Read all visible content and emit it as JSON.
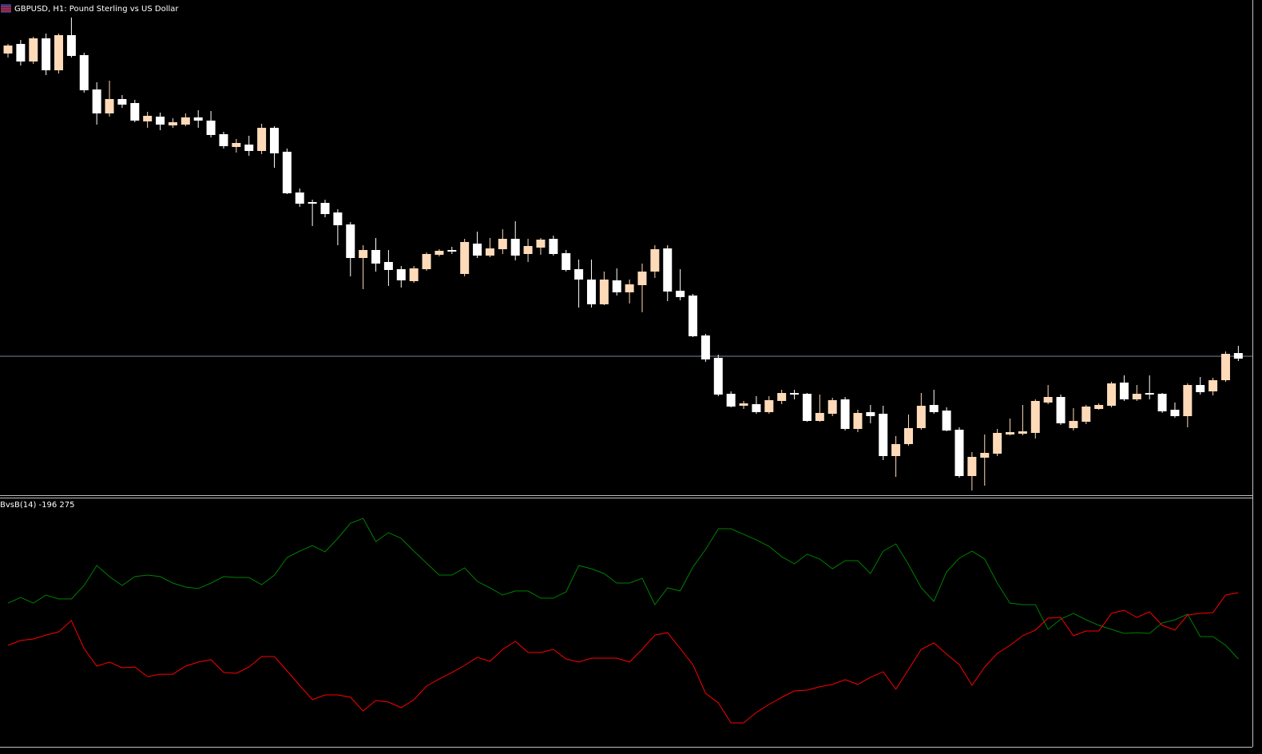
{
  "chart_data": [
    {
      "type": "candlestick",
      "title": "GBPUSD, H1:  Pound Sterling vs US Dollar",
      "open": [
        553,
        565,
        543,
        572,
        532,
        576,
        551,
        508,
        478,
        496,
        491,
        468,
        474,
        463,
        464,
        473,
        469,
        452,
        436,
        439,
        431,
        460,
        430,
        379,
        367,
        366,
        354,
        339,
        297,
        307,
        292,
        283,
        268,
        283,
        301,
        307,
        277,
        315,
        300,
        308,
        321,
        302,
        310,
        321,
        303,
        283,
        270,
        239,
        269,
        254,
        263,
        280,
        309,
        256,
        250,
        200,
        172,
        127,
        112,
        114,
        104,
        118,
        128,
        127,
        93,
        102,
        120,
        83,
        104,
        102,
        49,
        64,
        84,
        113,
        106,
        82,
        24,
        47,
        52,
        76,
        77,
        78,
        116,
        123,
        84,
        92,
        108,
        112,
        141,
        120,
        128,
        127,
        107,
        99,
        138,
        130,
        144,
        178
      ],
      "high": [
        565,
        570,
        574,
        578,
        578,
        598,
        554,
        517,
        519,
        501,
        495,
        480,
        479,
        472,
        478,
        482,
        481,
        455,
        446,
        450,
        465,
        462,
        434,
        384,
        370,
        370,
        358,
        342,
        313,
        322,
        307,
        287,
        287,
        304,
        308,
        311,
        321,
        330,
        322,
        333,
        343,
        321,
        322,
        325,
        307,
        295,
        295,
        280,
        284,
        270,
        290,
        313,
        313,
        283,
        252,
        202,
        176,
        130,
        118,
        124,
        124,
        132,
        132,
        128,
        126,
        122,
        123,
        107,
        113,
        112,
        74,
        101,
        128,
        132,
        110,
        85,
        54,
        76,
        83,
        96,
        113,
        120,
        138,
        126,
        109,
        113,
        115,
        142,
        150,
        138,
        150,
        128,
        116,
        140,
        148,
        147,
        180,
        187
      ],
      "low": [
        548,
        538,
        540,
        526,
        528,
        548,
        504,
        464,
        474,
        485,
        467,
        460,
        457,
        460,
        462,
        460,
        448,
        434,
        429,
        425,
        427,
        410,
        377,
        361,
        337,
        348,
        313,
        274,
        258,
        280,
        262,
        260,
        266,
        281,
        299,
        302,
        274,
        297,
        298,
        302,
        294,
        292,
        301,
        300,
        280,
        235,
        235,
        238,
        250,
        240,
        229,
        272,
        243,
        244,
        198,
        167,
        124,
        110,
        108,
        102,
        102,
        114,
        120,
        92,
        92,
        99,
        81,
        79,
        90,
        44,
        23,
        62,
        82,
        102,
        80,
        22,
        6,
        12,
        49,
        75,
        75,
        71,
        114,
        88,
        81,
        89,
        107,
        110,
        118,
        118,
        120,
        103,
        97,
        85,
        126,
        125,
        142,
        168
      ],
      "close": [
        563,
        543,
        572,
        532,
        576,
        550,
        507,
        478,
        496,
        489,
        469,
        475,
        464,
        467,
        473,
        469,
        451,
        437,
        441,
        431,
        460,
        428,
        378,
        365,
        365,
        352,
        338,
        297,
        307,
        290,
        282,
        269,
        284,
        302,
        306,
        305,
        317,
        300,
        309,
        321,
        300,
        312,
        320,
        302,
        282,
        270,
        239,
        270,
        254,
        264,
        280,
        308,
        255,
        248,
        199,
        170,
        126,
        111,
        115,
        104,
        119,
        128,
        126,
        93,
        103,
        119,
        83,
        103,
        99,
        49,
        64,
        84,
        112,
        104,
        81,
        24,
        48,
        53,
        78,
        79,
        80,
        118,
        123,
        90,
        93,
        111,
        113,
        140,
        120,
        127,
        126,
        105,
        99,
        138,
        129,
        144,
        177,
        171
      ],
      "up_color": "#ffdab9",
      "down_color": "#ffffff",
      "ylim": [
        0,
        620
      ],
      "hline": 174,
      "hline_color": "#778899"
    },
    {
      "type": "line",
      "title": "BvsB(14) -196 275",
      "series": [
        {
          "color": "#008000",
          "values": [
            201,
            241,
            201,
            258,
            230,
            230,
            326,
            468,
            389,
            326,
            389,
            400,
            389,
            343,
            315,
            304,
            343,
            389,
            383,
            383,
            332,
            400,
            525,
            570,
            610,
            565,
            661,
            769,
            803,
            638,
            701,
            661,
            570,
            485,
            400,
            400,
            451,
            355,
            309,
            258,
            287,
            287,
            236,
            236,
            281,
            468,
            445,
            411,
            343,
            343,
            377,
            190,
            309,
            287,
            457,
            582,
            729,
            729,
            690,
            650,
            604,
            531,
            480,
            548,
            514,
            445,
            502,
            502,
            411,
            570,
            621,
            474,
            309,
            213,
            423,
            519,
            570,
            514,
            343,
            201,
            190,
            190,
            14,
            88,
            128,
            82,
            43,
            14,
            -14,
            -9,
            -14,
            60,
            82,
            122,
            -37,
            -37,
            -99,
            -196
          ]
        },
        {
          "color": "#ff0000",
          "values": [
            -99,
            -65,
            -54,
            -26,
            -3,
            77,
            -122,
            -247,
            -218,
            -258,
            -253,
            -321,
            -304,
            -304,
            -247,
            -218,
            -201,
            -292,
            -298,
            -253,
            -179,
            -179,
            -281,
            -383,
            -485,
            -451,
            -451,
            -468,
            -565,
            -491,
            -502,
            -542,
            -485,
            -389,
            -338,
            -292,
            -241,
            -184,
            -213,
            -128,
            -71,
            -150,
            -150,
            -128,
            -196,
            -218,
            -190,
            -190,
            -190,
            -218,
            -128,
            -26,
            -9,
            -122,
            -236,
            -440,
            -508,
            -650,
            -650,
            -576,
            -519,
            -468,
            -423,
            -417,
            -394,
            -377,
            -343,
            -377,
            -326,
            -287,
            -411,
            -270,
            -128,
            -82,
            -162,
            -236,
            -383,
            -253,
            -156,
            -99,
            -31,
            9,
            94,
            99,
            -31,
            3,
            3,
            128,
            150,
            99,
            139,
            43,
            9,
            116,
            128,
            133,
            258,
            275
          ]
        }
      ],
      "ylim": [
        -820,
        956
      ]
    }
  ]
}
